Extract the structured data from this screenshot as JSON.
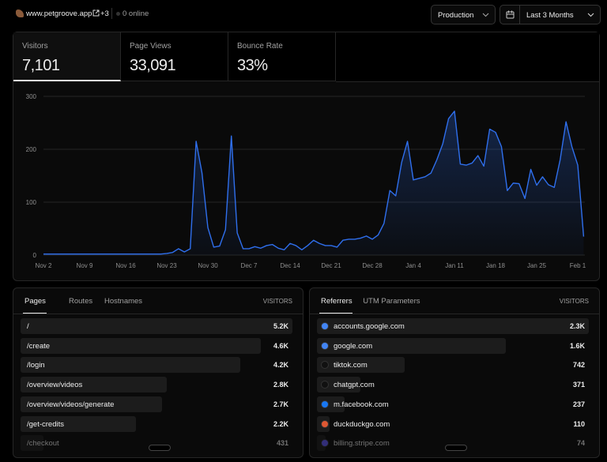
{
  "header": {
    "site": "www.petgroove.app",
    "extra": "+3",
    "online": "0 online",
    "environment": "Production",
    "range": "Last 3 Months"
  },
  "metrics": [
    {
      "label": "Visitors",
      "value": "7,101"
    },
    {
      "label": "Page Views",
      "value": "33,091"
    },
    {
      "label": "Bounce Rate",
      "value": "33%"
    }
  ],
  "chart_data": {
    "type": "area",
    "color": "#2f6fed",
    "categories": [
      "Nov 2",
      null,
      null,
      null,
      null,
      null,
      null,
      "Nov 9",
      null,
      null,
      null,
      null,
      null,
      null,
      "Nov 16",
      null,
      null,
      null,
      null,
      null,
      null,
      "Nov 23",
      null,
      null,
      null,
      null,
      null,
      null,
      "Nov 30",
      null,
      null,
      null,
      null,
      null,
      null,
      "Dec 7",
      null,
      null,
      null,
      null,
      null,
      null,
      "Dec 14",
      null,
      null,
      null,
      null,
      null,
      null,
      "Dec 21",
      null,
      null,
      null,
      null,
      null,
      null,
      "Dec 28",
      null,
      null,
      null,
      null,
      null,
      null,
      "Jan 4",
      null,
      null,
      null,
      null,
      null,
      null,
      "Jan 11",
      null,
      null,
      null,
      null,
      null,
      null,
      "Jan 18",
      null,
      null,
      null,
      null,
      null,
      null,
      "Jan 25",
      null,
      null,
      null,
      null,
      null,
      null,
      "Feb 1",
      null
    ],
    "values": [
      2,
      2,
      2,
      2,
      2,
      2,
      2,
      2,
      2,
      2,
      2,
      2,
      2,
      2,
      2,
      2,
      2,
      2,
      2,
      2,
      2,
      3,
      5,
      12,
      6,
      12,
      215,
      155,
      52,
      15,
      17,
      48,
      225,
      42,
      12,
      12,
      16,
      13,
      18,
      20,
      13,
      10,
      22,
      18,
      10,
      18,
      28,
      22,
      18,
      18,
      15,
      28,
      30,
      30,
      32,
      36,
      30,
      38,
      60,
      122,
      112,
      175,
      215,
      142,
      145,
      148,
      155,
      180,
      210,
      258,
      272,
      172,
      170,
      174,
      188,
      168,
      238,
      232,
      205,
      122,
      136,
      135,
      107,
      162,
      132,
      148,
      133,
      128,
      180,
      252,
      205,
      170,
      35
    ],
    "ylim": [
      0,
      300
    ],
    "yticks": [
      0,
      100,
      200,
      300
    ],
    "grid": true
  },
  "pages": {
    "tabs": [
      "Pages",
      "Routes",
      "Hostnames"
    ],
    "column": "VISITORS",
    "rows": [
      {
        "label": "/",
        "value": 5200,
        "value_label": "5.2K"
      },
      {
        "label": "/create",
        "value": 4600,
        "value_label": "4.6K"
      },
      {
        "label": "/login",
        "value": 4200,
        "value_label": "4.2K"
      },
      {
        "label": "/overview/videos",
        "value": 2800,
        "value_label": "2.8K"
      },
      {
        "label": "/overview/videos/generate",
        "value": 2700,
        "value_label": "2.7K"
      },
      {
        "label": "/get-credits",
        "value": 2200,
        "value_label": "2.2K"
      },
      {
        "label": "/checkout",
        "value": 431
      }
    ]
  },
  "referrers": {
    "tabs": [
      "Referrers",
      "UTM Parameters"
    ],
    "column": "VISITORS",
    "rows": [
      {
        "label": "accounts.google.com",
        "value": 2300,
        "value_label": "2.3K"
      },
      {
        "label": "google.com",
        "value": 1600,
        "value_label": "1.6K"
      },
      {
        "label": "tiktok.com",
        "value": 742
      },
      {
        "label": "chatgpt.com",
        "value": 371
      },
      {
        "label": "m.facebook.com",
        "value": 237
      },
      {
        "label": "duckduckgo.com",
        "value": 110
      },
      {
        "label": "billing.stripe.com",
        "value": 74
      }
    ]
  }
}
